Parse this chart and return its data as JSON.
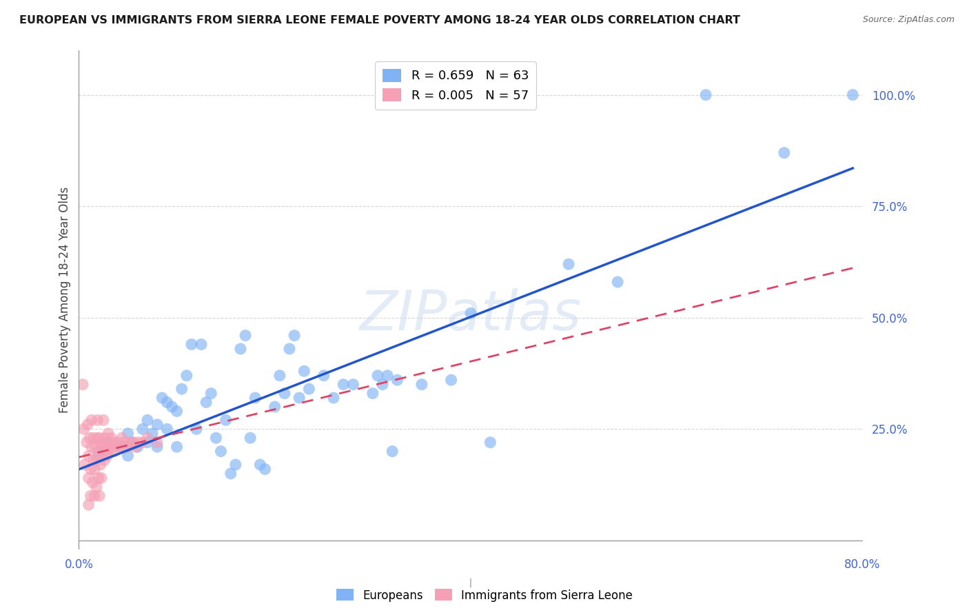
{
  "title": "EUROPEAN VS IMMIGRANTS FROM SIERRA LEONE FEMALE POVERTY AMONG 18-24 YEAR OLDS CORRELATION CHART",
  "source": "Source: ZipAtlas.com",
  "ylabel": "Female Poverty Among 18-24 Year Olds",
  "xlim": [
    0.0,
    0.8
  ],
  "ylim": [
    0.0,
    1.1
  ],
  "yticks_right": [
    0.25,
    0.5,
    0.75,
    1.0
  ],
  "ytick_labels_right": [
    "25.0%",
    "50.0%",
    "75.0%",
    "100.0%"
  ],
  "blue_color": "#7fb3f5",
  "pink_color": "#f5a0b5",
  "trendline_blue": "#2255cc",
  "trendline_pink": "#dd4466",
  "legend_R_blue": "0.659",
  "legend_N_blue": "63",
  "legend_R_pink": "0.005",
  "legend_N_pink": "57",
  "watermark": "ZIPatlas",
  "tick_color": "#4466cc",
  "grid_color": "#cccccc",
  "blue_scatter_x": [
    0.02,
    0.045,
    0.05,
    0.05,
    0.055,
    0.06,
    0.065,
    0.07,
    0.07,
    0.075,
    0.08,
    0.08,
    0.085,
    0.09,
    0.09,
    0.095,
    0.1,
    0.1,
    0.105,
    0.11,
    0.115,
    0.12,
    0.125,
    0.13,
    0.135,
    0.14,
    0.145,
    0.15,
    0.155,
    0.16,
    0.165,
    0.17,
    0.175,
    0.18,
    0.185,
    0.19,
    0.2,
    0.205,
    0.21,
    0.215,
    0.22,
    0.225,
    0.23,
    0.235,
    0.25,
    0.26,
    0.27,
    0.28,
    0.3,
    0.305,
    0.31,
    0.315,
    0.32,
    0.325,
    0.35,
    0.38,
    0.4,
    0.42,
    0.5,
    0.55,
    0.64,
    0.72,
    0.79
  ],
  "blue_scatter_y": [
    0.2,
    0.21,
    0.19,
    0.24,
    0.22,
    0.21,
    0.25,
    0.22,
    0.27,
    0.24,
    0.21,
    0.26,
    0.32,
    0.25,
    0.31,
    0.3,
    0.21,
    0.29,
    0.34,
    0.37,
    0.44,
    0.25,
    0.44,
    0.31,
    0.33,
    0.23,
    0.2,
    0.27,
    0.15,
    0.17,
    0.43,
    0.46,
    0.23,
    0.32,
    0.17,
    0.16,
    0.3,
    0.37,
    0.33,
    0.43,
    0.46,
    0.32,
    0.38,
    0.34,
    0.37,
    0.32,
    0.35,
    0.35,
    0.33,
    0.37,
    0.35,
    0.37,
    0.2,
    0.36,
    0.35,
    0.36,
    0.51,
    0.22,
    0.62,
    0.58,
    1.0,
    0.87,
    1.0
  ],
  "pink_scatter_x": [
    0.004,
    0.005,
    0.006,
    0.008,
    0.009,
    0.01,
    0.01,
    0.01,
    0.011,
    0.012,
    0.012,
    0.013,
    0.013,
    0.014,
    0.015,
    0.015,
    0.016,
    0.016,
    0.017,
    0.018,
    0.018,
    0.019,
    0.019,
    0.02,
    0.02,
    0.021,
    0.021,
    0.022,
    0.023,
    0.023,
    0.024,
    0.025,
    0.025,
    0.026,
    0.027,
    0.028,
    0.029,
    0.03,
    0.03,
    0.031,
    0.032,
    0.033,
    0.035,
    0.036,
    0.038,
    0.04,
    0.042,
    0.044,
    0.046,
    0.05,
    0.052,
    0.055,
    0.058,
    0.06,
    0.065,
    0.07,
    0.08
  ],
  "pink_scatter_y": [
    0.35,
    0.25,
    0.17,
    0.22,
    0.26,
    0.08,
    0.14,
    0.19,
    0.23,
    0.1,
    0.16,
    0.21,
    0.27,
    0.13,
    0.18,
    0.23,
    0.1,
    0.16,
    0.21,
    0.12,
    0.18,
    0.23,
    0.27,
    0.14,
    0.19,
    0.1,
    0.23,
    0.17,
    0.22,
    0.14,
    0.2,
    0.21,
    0.27,
    0.18,
    0.23,
    0.21,
    0.19,
    0.2,
    0.24,
    0.22,
    0.21,
    0.23,
    0.22,
    0.2,
    0.21,
    0.22,
    0.21,
    0.23,
    0.22,
    0.21,
    0.22,
    0.22,
    0.21,
    0.22,
    0.22,
    0.23,
    0.22
  ]
}
